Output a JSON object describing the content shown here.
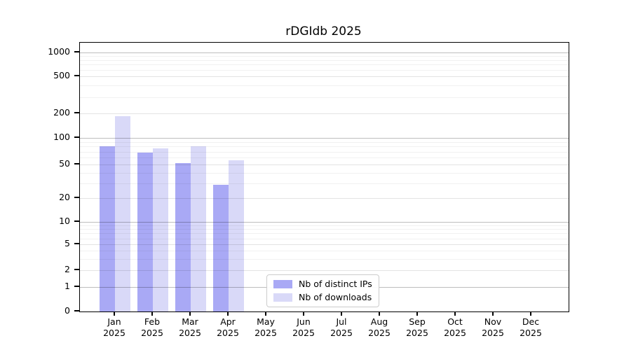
{
  "chart_data": {
    "type": "bar",
    "title": "rDGIdb 2025",
    "yscale": "symlog",
    "grid": "both",
    "yticks": [
      0,
      1,
      2,
      5,
      10,
      20,
      50,
      100,
      200,
      500,
      1000
    ],
    "ylim": [
      0,
      1200
    ],
    "legend_position": "inside-bottom-center",
    "categories": [
      {
        "month": "Jan",
        "year": "2025"
      },
      {
        "month": "Feb",
        "year": "2025"
      },
      {
        "month": "Mar",
        "year": "2025"
      },
      {
        "month": "Apr",
        "year": "2025"
      },
      {
        "month": "May",
        "year": "2025"
      },
      {
        "month": "Jun",
        "year": "2025"
      },
      {
        "month": "Jul",
        "year": "2025"
      },
      {
        "month": "Aug",
        "year": "2025"
      },
      {
        "month": "Sep",
        "year": "2025"
      },
      {
        "month": "Oct",
        "year": "2025"
      },
      {
        "month": "Nov",
        "year": "2025"
      },
      {
        "month": "Dec",
        "year": "2025"
      }
    ],
    "series": [
      {
        "name": "Nb of distinct IPs",
        "color": "#a9a9f5",
        "values": [
          80,
          68,
          52,
          29,
          null,
          null,
          null,
          null,
          null,
          null,
          null,
          null
        ]
      },
      {
        "name": "Nb of downloads",
        "color": "#d9d9f8",
        "values": [
          185,
          76,
          80,
          56,
          null,
          null,
          null,
          null,
          null,
          null,
          null,
          null
        ]
      }
    ]
  }
}
